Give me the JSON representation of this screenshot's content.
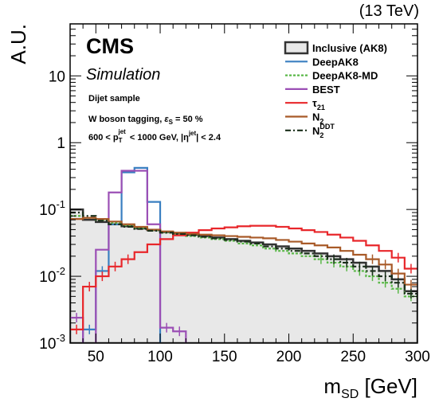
{
  "chart_data": {
    "type": "step-histogram",
    "energy_label": "(13 TeV)",
    "cms_label": "CMS",
    "cms_sublabel": "Simulation",
    "annotations": [
      "Dijet sample",
      "W boson tagging, ε_S = 50 %",
      "600 < p_T^jet < 1000 GeV, |η^jet| < 2.4"
    ],
    "xlabel": "m_SD [GeV]",
    "ylabel": "A.U.",
    "xlim": [
      30,
      300
    ],
    "ylim": [
      0.001,
      60
    ],
    "yscale": "log",
    "xticks": [
      50,
      100,
      150,
      200,
      250,
      300
    ],
    "yticks": [
      0.001,
      0.01,
      0.1,
      1,
      10
    ],
    "ytick_labels": [
      "10^-3",
      "10^-2",
      "10^-1",
      "1",
      "10"
    ],
    "bin_edges": [
      30,
      40,
      50,
      60,
      70,
      80,
      90,
      100,
      110,
      120,
      130,
      140,
      150,
      160,
      170,
      180,
      190,
      200,
      210,
      220,
      230,
      240,
      250,
      260,
      270,
      280,
      290,
      300
    ],
    "legend_position": "top-right",
    "series": [
      {
        "name": "Inclusive (AK8)",
        "style": "filled",
        "color": "#333333",
        "fill": "#e8e8e8",
        "values": [
          0.1,
          0.07,
          0.065,
          0.06,
          0.056,
          0.052,
          0.049,
          0.046,
          0.044,
          0.042,
          0.04,
          0.038,
          0.036,
          0.034,
          0.032,
          0.03,
          0.028,
          0.026,
          0.024,
          0.022,
          0.02,
          0.018,
          0.016,
          0.014,
          0.012,
          0.009,
          0.006
        ]
      },
      {
        "name": "DeepAK8",
        "style": "solid",
        "color": "#3a7fc1",
        "values": [
          0.0009,
          0.0016,
          0.012,
          0.06,
          0.36,
          0.42,
          0.13,
          0.0009,
          0.0009,
          0.0009,
          0.0009,
          0.0009,
          0.0009,
          0.0009,
          0.0009,
          0.0009,
          0.0009,
          0.0009,
          0.0009,
          0.0009,
          0.0009,
          0.0009,
          0.0009,
          0.0009,
          0.0009,
          0.0009,
          0.0009
        ]
      },
      {
        "name": "DeepAK8-MD",
        "style": "dotted",
        "color": "#5ab848",
        "values": [
          0.08,
          0.075,
          0.07,
          0.063,
          0.058,
          0.053,
          0.049,
          0.045,
          0.042,
          0.04,
          0.038,
          0.036,
          0.034,
          0.031,
          0.029,
          0.026,
          0.024,
          0.022,
          0.02,
          0.018,
          0.016,
          0.014,
          0.012,
          0.01,
          0.008,
          0.0065,
          0.005
        ]
      },
      {
        "name": "BEST",
        "style": "solid",
        "color": "#9b4fb5",
        "values": [
          0.0024,
          0.0007,
          0.025,
          0.18,
          0.38,
          0.38,
          0.06,
          0.0017,
          0.0015,
          0.0009,
          0.0009,
          0.0009,
          0.0009,
          0.0009,
          0.0009,
          0.0009,
          0.0009,
          0.0009,
          0.0009,
          0.0009,
          0.0009,
          0.0009,
          0.0009,
          0.0009,
          0.0009,
          0.0009,
          0.0009
        ]
      },
      {
        "name": "τ21",
        "style": "solid",
        "color": "#e8262a",
        "values": [
          0.0016,
          0.007,
          0.01,
          0.014,
          0.018,
          0.023,
          0.03,
          0.036,
          0.041,
          0.045,
          0.049,
          0.052,
          0.054,
          0.056,
          0.057,
          0.057,
          0.055,
          0.052,
          0.049,
          0.046,
          0.042,
          0.038,
          0.034,
          0.029,
          0.024,
          0.019,
          0.013
        ]
      },
      {
        "name": "N2",
        "style": "solid",
        "color": "#a85a28",
        "values": [
          0.072,
          0.075,
          0.072,
          0.066,
          0.06,
          0.055,
          0.05,
          0.047,
          0.045,
          0.043,
          0.042,
          0.041,
          0.04,
          0.039,
          0.038,
          0.037,
          0.035,
          0.033,
          0.031,
          0.029,
          0.027,
          0.024,
          0.021,
          0.018,
          0.015,
          0.011,
          0.0075
        ]
      },
      {
        "name": "N2^DDT",
        "style": "dashdot",
        "color": "#1a2e1a",
        "values": [
          0.09,
          0.08,
          0.068,
          0.06,
          0.055,
          0.051,
          0.048,
          0.045,
          0.043,
          0.041,
          0.039,
          0.037,
          0.035,
          0.033,
          0.031,
          0.028,
          0.026,
          0.024,
          0.022,
          0.02,
          0.018,
          0.016,
          0.014,
          0.012,
          0.01,
          0.008,
          0.0055
        ]
      }
    ]
  }
}
